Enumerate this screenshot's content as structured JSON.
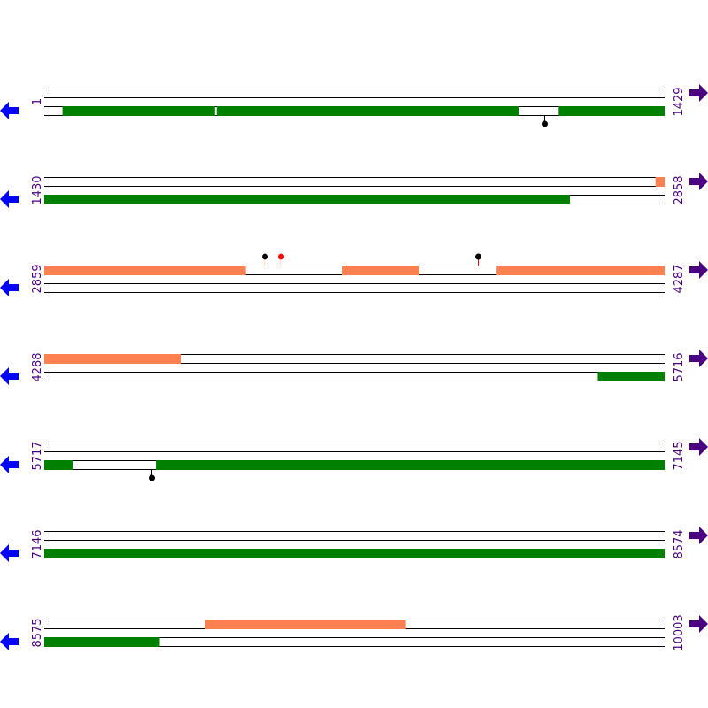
{
  "colors": {
    "cds": "#008000",
    "region": "#ff8050",
    "left_arrow": "#0000ff",
    "right_arrow": "#4b0082",
    "label": "#4b0082",
    "site_black": "#000000",
    "site_red": "#ff0000",
    "stem": "#ff0000"
  },
  "icons": {
    "left": "arrow-left-icon",
    "right": "arrow-right-icon"
  },
  "rows": [
    {
      "start": 1,
      "end": 1429,
      "start_label": "1",
      "end_label": "1429",
      "top": [],
      "bottom": [
        [
          43,
          393
        ],
        [
          398,
          1093
        ],
        [
          1186,
          1429
        ]
      ],
      "sites": [
        {
          "pos": 1153,
          "side": "bottom",
          "color": "black"
        }
      ]
    },
    {
      "start": 1430,
      "end": 2858,
      "start_label": "1430",
      "end_label": "2858",
      "top": [
        [
          2838,
          2858
        ]
      ],
      "bottom": [
        [
          1430,
          2640
        ]
      ],
      "sites": []
    },
    {
      "start": 2859,
      "end": 4287,
      "start_label": "2859",
      "end_label": "4287",
      "top": [
        [
          2859,
          3322
        ],
        [
          3546,
          3722
        ],
        [
          3901,
          4287
        ]
      ],
      "bottom": [],
      "sites": [
        {
          "pos": 3367,
          "side": "top",
          "color": "black"
        },
        {
          "pos": 3404,
          "side": "top",
          "color": "red"
        },
        {
          "pos": 3857,
          "side": "top",
          "color": "black"
        }
      ]
    },
    {
      "start": 4288,
      "end": 5716,
      "start_label": "4288",
      "end_label": "5716",
      "top": [
        [
          4288,
          4602
        ]
      ],
      "bottom": [
        [
          5563,
          5716
        ]
      ],
      "sites": []
    },
    {
      "start": 5717,
      "end": 7145,
      "start_label": "5717",
      "end_label": "7145",
      "top": [],
      "bottom": [
        [
          5717,
          5782
        ],
        [
          5974,
          7145
        ]
      ],
      "sites": [
        {
          "pos": 5964,
          "side": "bottom",
          "color": "black"
        }
      ]
    },
    {
      "start": 7146,
      "end": 8574,
      "start_label": "7146",
      "end_label": "8574",
      "top": [],
      "bottom": [
        [
          7146,
          8574
        ]
      ],
      "sites": []
    },
    {
      "start": 8575,
      "end": 10003,
      "start_label": "8575",
      "end_label": "10003",
      "top": [
        [
          8946,
          9407
        ]
      ],
      "bottom": [
        [
          8575,
          8840
        ]
      ],
      "sites": []
    }
  ]
}
